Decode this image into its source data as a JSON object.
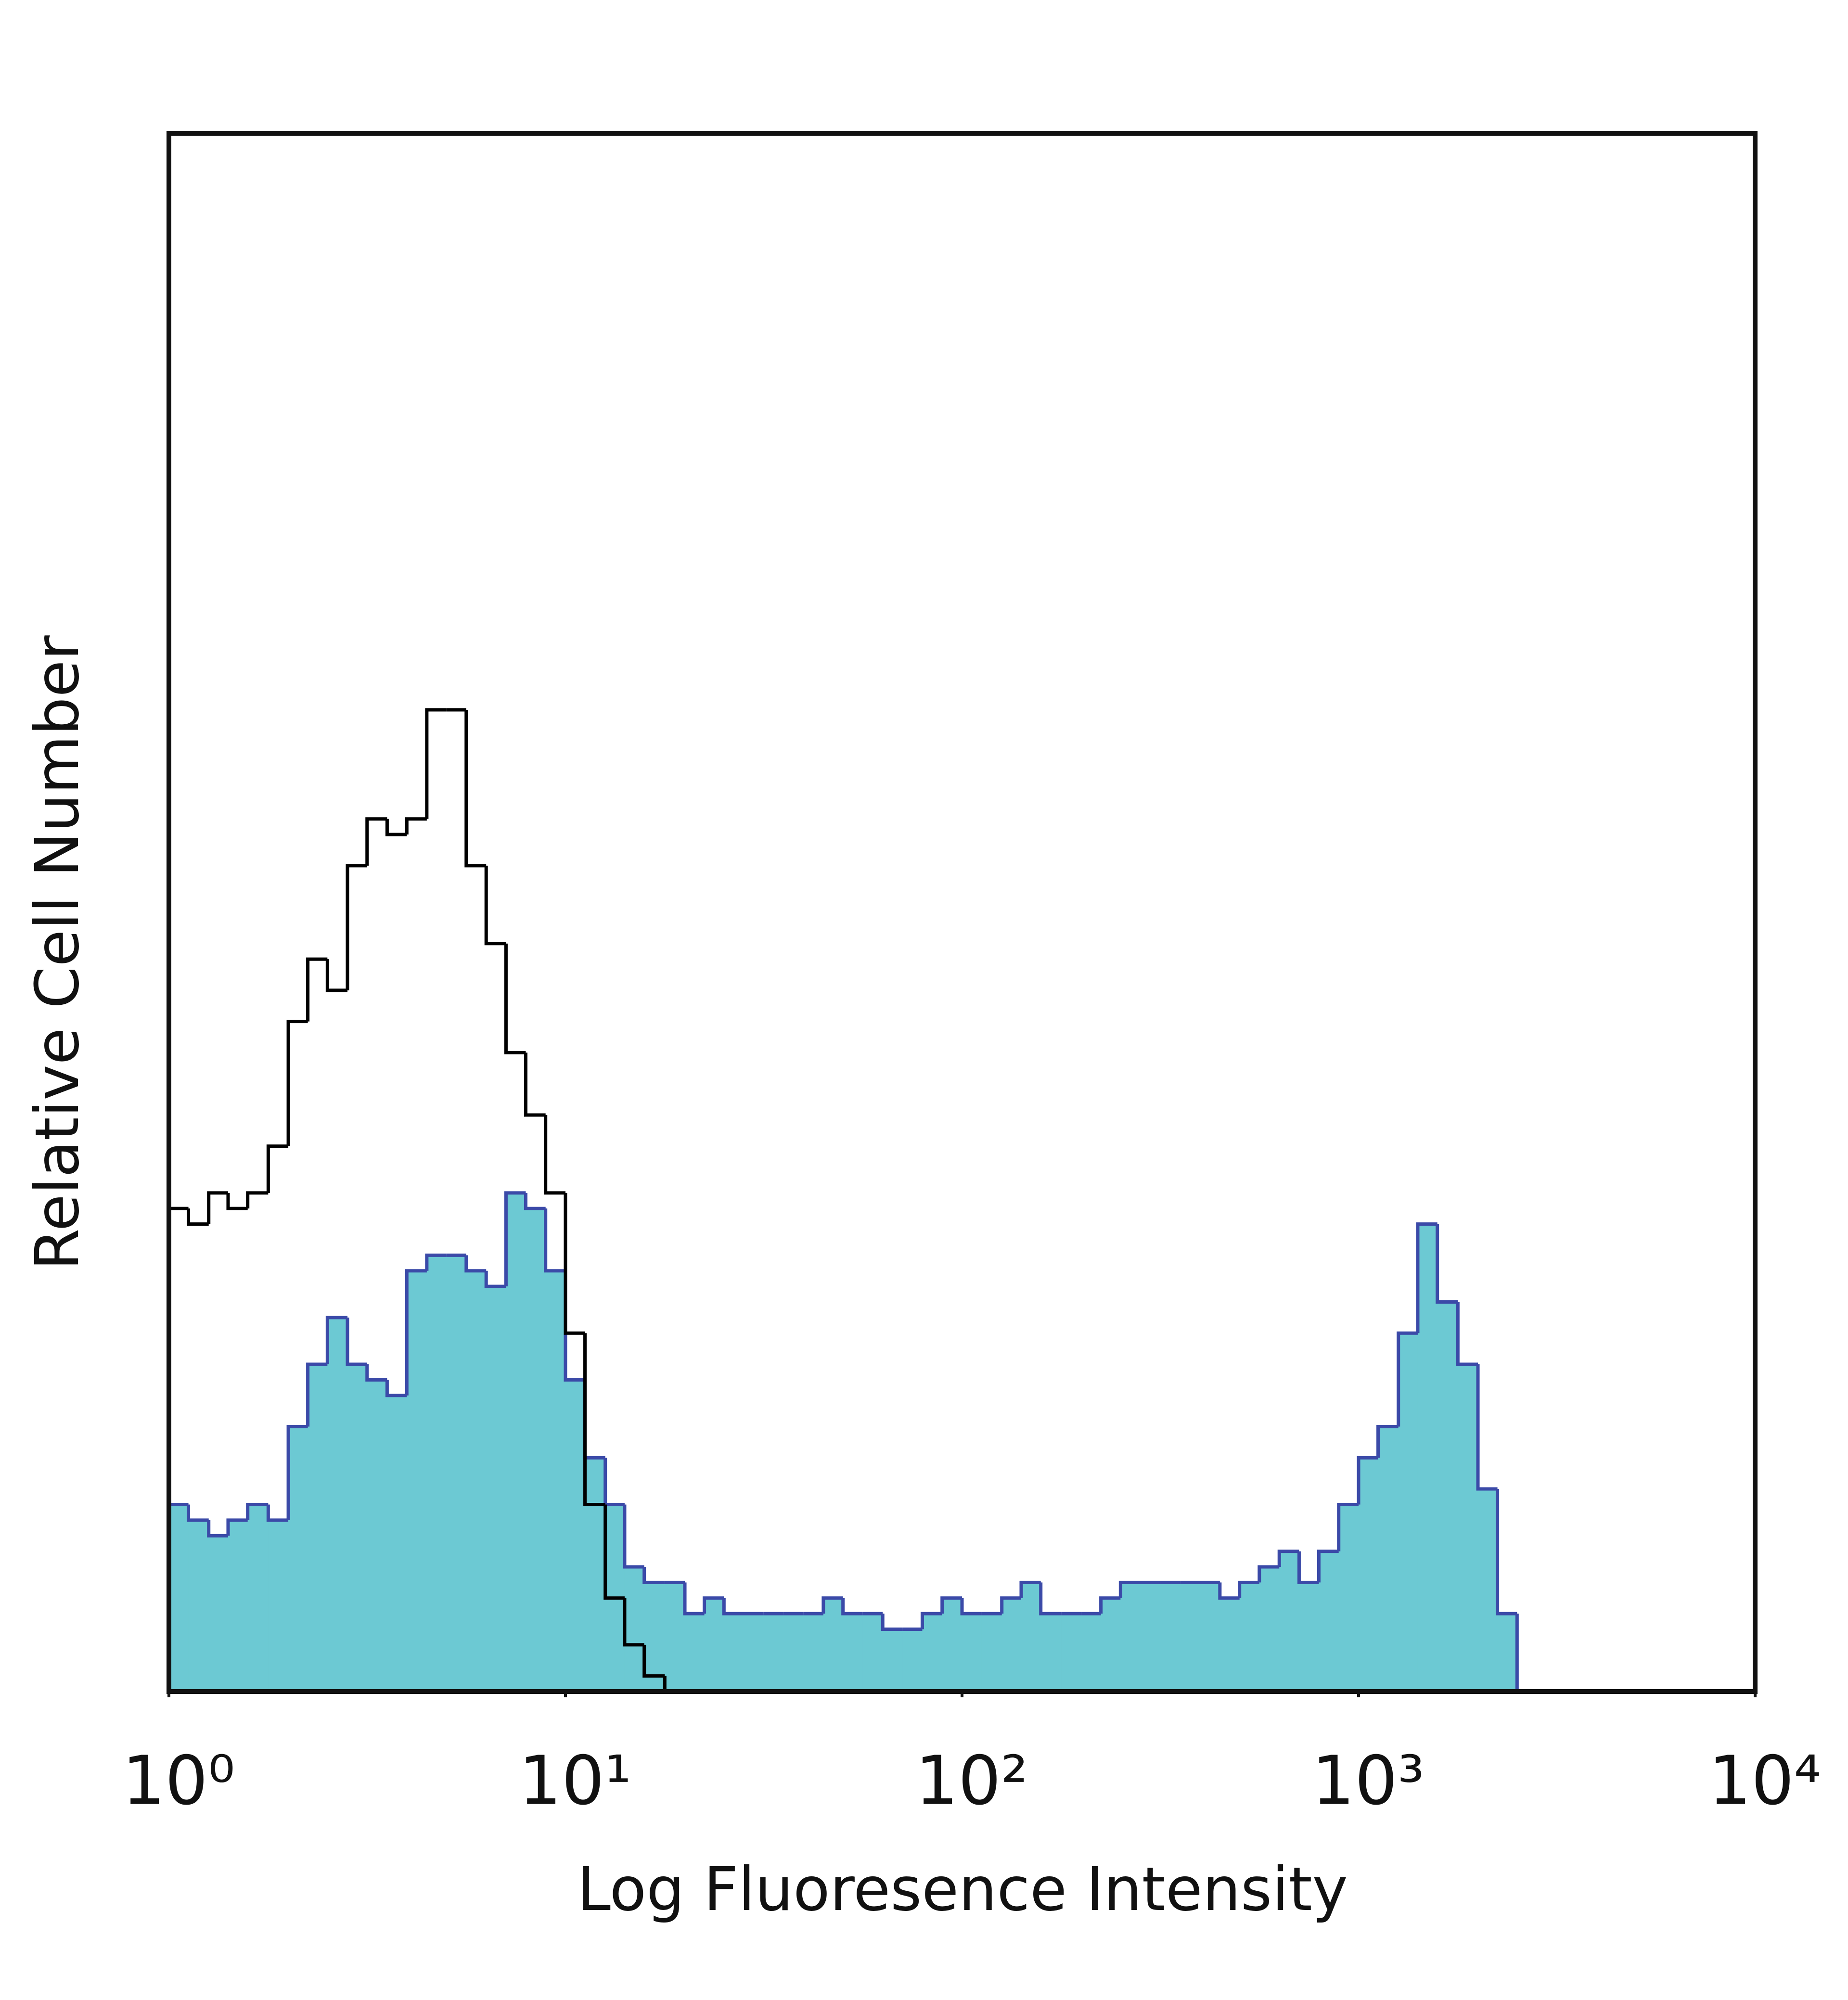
{
  "chart_data": {
    "type": "histogram",
    "x_label": "Log Fluoresence Intensity",
    "y_label": "Relative Cell Number",
    "xscale": "log",
    "xlim": [
      1,
      10000
    ],
    "ylim": [
      0,
      100
    ],
    "xticks": [
      {
        "value": 1,
        "label": "10⁰"
      },
      {
        "value": 10,
        "label": "10¹"
      },
      {
        "value": 100,
        "label": "10²"
      },
      {
        "value": 1000,
        "label": "10³"
      },
      {
        "value": 10000,
        "label": "10⁴"
      }
    ],
    "grid": false,
    "bins": [
      1,
      1.12,
      1.26,
      1.41,
      1.58,
      1.78,
      2,
      2.24,
      2.51,
      2.82,
      3.16,
      3.55,
      3.98,
      4.47,
      5.01,
      5.62,
      6.31,
      7.08,
      7.94,
      8.91,
      10,
      11.2,
      12.6,
      14.1,
      15.8,
      17.8,
      20,
      22.4,
      25.1,
      28.2,
      31.6,
      35.5,
      39.8,
      44.7,
      50.1,
      56.2,
      63.1,
      70.8,
      79.4,
      89.1,
      100,
      112,
      126,
      141,
      158,
      178,
      200,
      224,
      251,
      282,
      316,
      355,
      398,
      447,
      501,
      562,
      631,
      708,
      794,
      891,
      1000,
      1120,
      1260,
      1410,
      1580,
      1780,
      2000,
      2240,
      2510,
      2820,
      3160,
      3550,
      3980,
      4470,
      5010,
      5620,
      6310,
      7080,
      7940,
      8910,
      10000
    ],
    "series": [
      {
        "color": "#3b4aa8",
        "fill": "#6cc9d3",
        "values": [
          12,
          11,
          10,
          11,
          12,
          11,
          17,
          21,
          24,
          21,
          20,
          19,
          27,
          28,
          28,
          27,
          26,
          32,
          31,
          27,
          20,
          15,
          12,
          8,
          7,
          7,
          5,
          6,
          5,
          5,
          5,
          5,
          5,
          6,
          5,
          5,
          4,
          4,
          5,
          6,
          5,
          5,
          6,
          7,
          5,
          5,
          5,
          6,
          7,
          7,
          7,
          7,
          7,
          6,
          7,
          8,
          9,
          7,
          9,
          12,
          15,
          17,
          23,
          30,
          25,
          21,
          13,
          5,
          0,
          0,
          0,
          0,
          0,
          0,
          0,
          0,
          0,
          0,
          0,
          0
        ]
      },
      {
        "color": "#000000",
        "values": [
          31,
          30,
          32,
          31,
          32,
          35,
          43,
          47,
          45,
          53,
          56,
          55,
          56,
          63,
          63,
          53,
          48,
          41,
          37,
          32,
          23,
          12,
          6,
          3,
          1,
          0,
          0,
          0,
          0,
          0,
          0,
          0,
          0,
          0,
          0,
          0,
          0,
          0,
          0,
          0,
          0,
          0,
          0,
          0,
          0,
          0,
          0,
          0,
          0,
          0,
          0,
          0,
          0,
          0,
          0,
          0,
          0,
          0,
          0,
          0,
          0,
          0,
          0,
          0,
          0,
          0,
          0,
          0,
          0,
          0,
          0,
          0,
          0,
          0,
          0,
          0,
          0,
          0,
          0,
          0
        ]
      }
    ]
  }
}
